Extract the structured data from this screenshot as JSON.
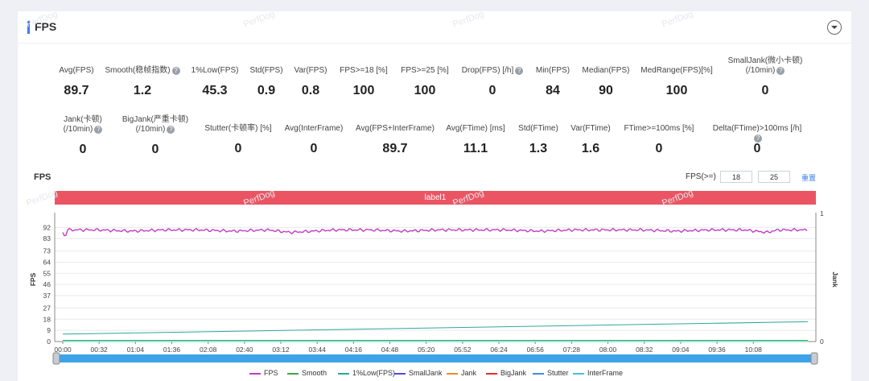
{
  "card": {
    "title": "FPS"
  },
  "stats_row1": [
    {
      "label": "Avg(FPS)",
      "value": "89.7",
      "help": false
    },
    {
      "label": "Smooth(稳帧指数)",
      "value": "1.2",
      "help": true
    },
    {
      "label": "1%Low(FPS)",
      "value": "45.3",
      "help": false
    },
    {
      "label": "Std(FPS)",
      "value": "0.9",
      "help": false
    },
    {
      "label": "Var(FPS)",
      "value": "0.8",
      "help": false
    },
    {
      "label": "FPS>=18 [%]",
      "value": "100",
      "help": false
    },
    {
      "label": "FPS>=25 [%]",
      "value": "100",
      "help": false
    },
    {
      "label": "Drop(FPS) [/h]",
      "value": "0",
      "help": true
    },
    {
      "label": "Min(FPS)",
      "value": "84",
      "help": false
    },
    {
      "label": "Median(FPS)",
      "value": "90",
      "help": false
    },
    {
      "label": "MedRange(FPS)[%]",
      "value": "100",
      "help": false
    },
    {
      "label": "SmallJank(微小卡顿)",
      "label2": "(/10min)",
      "value": "0",
      "help": true
    }
  ],
  "stats_row2": [
    {
      "label": "Jank(卡顿)",
      "label2": "(/10min)",
      "value": "0",
      "help": true
    },
    {
      "label": "BigJank(严重卡顿)",
      "label2": "(/10min)",
      "value": "0",
      "help": true
    },
    {
      "label": "Stutter(卡顿率) [%]",
      "value": "0",
      "help": false
    },
    {
      "label": "Avg(InterFrame)",
      "value": "0",
      "help": false
    },
    {
      "label": "Avg(FPS+InterFrame)",
      "value": "89.7",
      "help": false
    },
    {
      "label": "Avg(FTime) [ms]",
      "value": "11.1",
      "help": false
    },
    {
      "label": "Std(FTime)",
      "value": "1.3",
      "help": false
    },
    {
      "label": "Var(FTime)",
      "value": "1.6",
      "help": false
    },
    {
      "label": "FTime>=100ms [%]",
      "value": "0",
      "help": false
    },
    {
      "label": "Delta(FTime)>100ms [/h]",
      "value": "0",
      "help": true
    }
  ],
  "chart_panel": {
    "title": "FPS",
    "threshold_label": "FPS(>=)",
    "threshold_1": "18",
    "threshold_2": "25",
    "reset_label": "重置",
    "label_bar": "label1"
  },
  "watermark_text": "PerfDog",
  "chart_data": {
    "type": "line",
    "ylabel": "FPS",
    "y2label": "Jank",
    "yticks": [
      0,
      9,
      18,
      27,
      37,
      46,
      55,
      64,
      73,
      83,
      92
    ],
    "ylim": [
      0,
      100
    ],
    "y2ticks": [
      0,
      1
    ],
    "xticks": [
      "00:00",
      "00:32",
      "01:04",
      "01:36",
      "02:08",
      "02:40",
      "03:12",
      "03:44",
      "04:16",
      "04:48",
      "05:20",
      "05:52",
      "06:24",
      "06:56",
      "07:28",
      "08:00",
      "08:32",
      "09:04",
      "09:36",
      "10:08"
    ],
    "duration_seconds": 656,
    "series": [
      {
        "name": "FPS",
        "color": "#c23ec2",
        "x": [
          0,
          2,
          4,
          30,
          60,
          90,
          120,
          150,
          180,
          200,
          240,
          270,
          300,
          330,
          360,
          390,
          420,
          450,
          480,
          510,
          540,
          570,
          600,
          620,
          630,
          656
        ],
        "values": [
          88,
          84,
          90,
          90,
          89,
          90,
          90,
          89,
          90,
          88,
          90,
          90,
          89,
          90,
          90,
          90,
          89,
          90,
          90,
          90,
          89,
          90,
          90,
          88,
          90,
          90
        ]
      },
      {
        "name": "Smooth",
        "color": "#3aa84a",
        "x": [
          0,
          656
        ],
        "values": [
          1,
          1
        ]
      },
      {
        "name": "1%Low(FPS)",
        "color": "#2fa89a",
        "x": [
          0,
          656
        ],
        "values": [
          6,
          16
        ]
      },
      {
        "name": "SmallJank",
        "color": "#4a4ae6",
        "x": [
          0,
          656
        ],
        "values": [
          0,
          0
        ]
      },
      {
        "name": "Jank",
        "color": "#f08a2c",
        "x": [
          0,
          656
        ],
        "values": [
          0,
          0
        ]
      },
      {
        "name": "BigJank",
        "color": "#e03030",
        "x": [
          0,
          656
        ],
        "values": [
          0,
          0
        ]
      },
      {
        "name": "Stutter",
        "color": "#3c8fe0",
        "x": [
          0,
          656
        ],
        "values": [
          0,
          0
        ]
      },
      {
        "name": "InterFrame",
        "color": "#3cc8d8",
        "x": [
          0,
          656
        ],
        "values": [
          0,
          0
        ]
      }
    ]
  }
}
